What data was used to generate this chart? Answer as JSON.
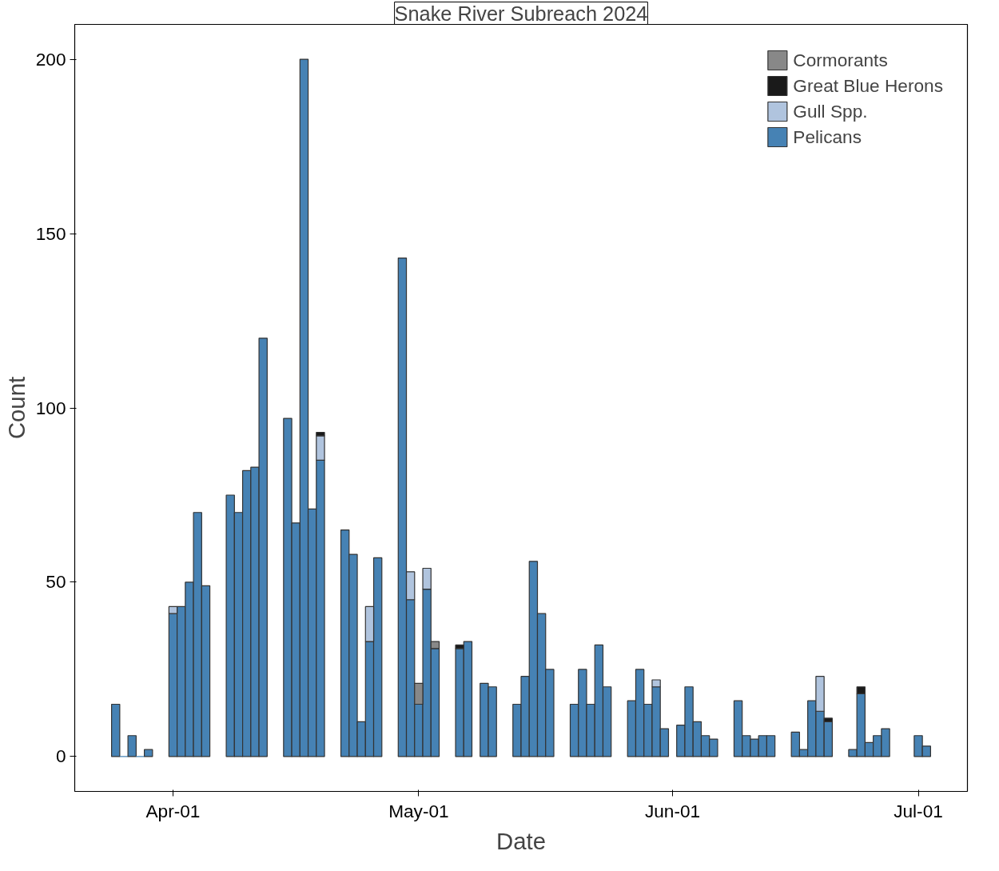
{
  "chart_data": {
    "type": "bar",
    "stacked": true,
    "title": "Snake River Subreach 2024",
    "xlabel": "Date",
    "ylabel": "Count",
    "x": [
      "2024-03-25",
      "2024-03-26",
      "2024-03-27",
      "2024-03-28",
      "2024-03-29",
      "2024-04-01",
      "2024-04-02",
      "2024-04-03",
      "2024-04-04",
      "2024-04-05",
      "2024-04-08",
      "2024-04-09",
      "2024-04-10",
      "2024-04-11",
      "2024-04-12",
      "2024-04-15",
      "2024-04-16",
      "2024-04-17",
      "2024-04-18",
      "2024-04-19",
      "2024-04-22",
      "2024-04-23",
      "2024-04-24",
      "2024-04-25",
      "2024-04-26",
      "2024-04-29",
      "2024-04-30",
      "2024-05-01",
      "2024-05-02",
      "2024-05-03",
      "2024-05-06",
      "2024-05-07",
      "2024-05-09",
      "2024-05-10",
      "2024-05-13",
      "2024-05-14",
      "2024-05-15",
      "2024-05-16",
      "2024-05-17",
      "2024-05-20",
      "2024-05-21",
      "2024-05-22",
      "2024-05-23",
      "2024-05-24",
      "2024-05-27",
      "2024-05-28",
      "2024-05-29",
      "2024-05-30",
      "2024-05-31",
      "2024-06-02",
      "2024-06-03",
      "2024-06-04",
      "2024-06-05",
      "2024-06-06",
      "2024-06-09",
      "2024-06-10",
      "2024-06-11",
      "2024-06-12",
      "2024-06-13",
      "2024-06-16",
      "2024-06-17",
      "2024-06-18",
      "2024-06-19",
      "2024-06-20",
      "2024-06-23",
      "2024-06-24",
      "2024-06-25",
      "2024-06-26",
      "2024-06-27",
      "2024-07-01",
      "2024-07-02"
    ],
    "series": [
      {
        "name": "Pelicans",
        "color": "#4682b4",
        "values": [
          15,
          0,
          6,
          0,
          2,
          41,
          43,
          50,
          70,
          49,
          75,
          70,
          82,
          83,
          120,
          97,
          67,
          200,
          71,
          85,
          65,
          58,
          10,
          33,
          57,
          143,
          45,
          15,
          48,
          31,
          31,
          33,
          21,
          20,
          15,
          23,
          56,
          41,
          25,
          15,
          25,
          15,
          32,
          20,
          16,
          25,
          15,
          20,
          8,
          9,
          20,
          10,
          6,
          5,
          16,
          6,
          5,
          6,
          6,
          7,
          2,
          16,
          13,
          10,
          2,
          18,
          4,
          6,
          8,
          6,
          3
        ]
      },
      {
        "name": "Gull Spp.",
        "color": "#b0c4de",
        "values": [
          null,
          null,
          null,
          null,
          null,
          2,
          null,
          null,
          null,
          null,
          null,
          null,
          null,
          null,
          null,
          null,
          null,
          null,
          null,
          7,
          null,
          null,
          null,
          10,
          null,
          null,
          8,
          null,
          6,
          null,
          null,
          null,
          null,
          null,
          null,
          null,
          null,
          null,
          null,
          null,
          null,
          null,
          null,
          null,
          null,
          null,
          null,
          2,
          null,
          null,
          null,
          null,
          null,
          null,
          null,
          null,
          null,
          null,
          null,
          null,
          null,
          null,
          10,
          null,
          null,
          null,
          null,
          null,
          null,
          null,
          null
        ]
      },
      {
        "name": "Great Blue Herons",
        "color": "#1a1a1a",
        "values": [
          null,
          null,
          null,
          null,
          null,
          null,
          null,
          null,
          null,
          null,
          null,
          null,
          null,
          null,
          null,
          null,
          null,
          null,
          null,
          1,
          null,
          null,
          null,
          null,
          null,
          null,
          null,
          null,
          null,
          null,
          1,
          null,
          null,
          null,
          null,
          null,
          null,
          null,
          null,
          null,
          null,
          null,
          null,
          null,
          null,
          null,
          null,
          null,
          null,
          null,
          null,
          null,
          null,
          null,
          null,
          null,
          null,
          null,
          null,
          null,
          null,
          null,
          null,
          1,
          null,
          2,
          null,
          null,
          null,
          null,
          null
        ]
      },
      {
        "name": "Cormorants",
        "color": "#888888",
        "values": [
          null,
          null,
          null,
          null,
          null,
          null,
          null,
          null,
          null,
          null,
          null,
          null,
          null,
          null,
          null,
          null,
          null,
          null,
          null,
          null,
          null,
          null,
          null,
          null,
          null,
          null,
          null,
          6,
          null,
          2,
          null,
          null,
          null,
          null,
          null,
          null,
          null,
          null,
          null,
          null,
          null,
          null,
          null,
          null,
          null,
          null,
          null,
          null,
          null,
          null,
          null,
          null,
          null,
          null,
          null,
          null,
          null,
          null,
          null,
          null,
          null,
          null,
          null,
          null,
          null,
          null,
          null,
          null,
          null,
          null,
          null
        ]
      }
    ],
    "xlim": [
      "2024-03-20",
      "2024-07-07"
    ],
    "xticks": [
      {
        "value": "2024-04-01",
        "label": "Apr-01"
      },
      {
        "value": "2024-05-01",
        "label": "May-01"
      },
      {
        "value": "2024-06-01",
        "label": "Jun-01"
      },
      {
        "value": "2024-07-01",
        "label": "Jul-01"
      }
    ],
    "ylim": [
      -10,
      210
    ],
    "yticks": [
      0,
      50,
      100,
      150,
      200
    ],
    "grid": false,
    "legend": "top right"
  }
}
